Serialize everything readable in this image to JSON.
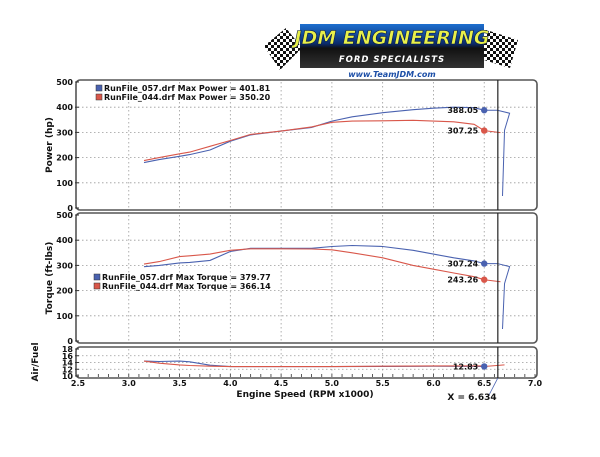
{
  "header": {
    "brand_title": "JDM ENGINEERING",
    "brand_subtitle": "FORD SPECIALISTS",
    "website": "www.TeamJDM.com"
  },
  "colors": {
    "run_057": "#4a62b0",
    "run_044": "#d9574a",
    "grid": "#9a9a9a",
    "panel_border": "#555555",
    "cursor": "#222222"
  },
  "cursor": {
    "label": "X = 6.634",
    "x": 6.634
  },
  "chart_data": [
    {
      "type": "line",
      "title": "Power",
      "xlabel": "Engine Speed (RPM x1000)",
      "ylabel": "Power (hp)",
      "xlim": [
        2.5,
        7.0
      ],
      "ylim": [
        0,
        500
      ],
      "yticks": [
        0,
        100,
        200,
        300,
        400,
        500
      ],
      "grid": true,
      "legend_position": "top-left",
      "legend": [
        {
          "label": "RunFile_057.drf Max Power = 401.81",
          "color": "#4a62b0"
        },
        {
          "label": "RunFile_044.drf Max Power = 350.20",
          "color": "#d9574a"
        }
      ],
      "x": [
        3.15,
        3.3,
        3.5,
        3.6,
        3.8,
        4.0,
        4.2,
        4.5,
        4.8,
        5.0,
        5.2,
        5.5,
        5.8,
        6.0,
        6.2,
        6.4,
        6.5
      ],
      "series": [
        {
          "name": "RunFile_057.drf",
          "values": [
            180,
            192,
            205,
            212,
            230,
            265,
            290,
            305,
            320,
            345,
            362,
            378,
            390,
            396,
            400,
            398,
            388.05
          ]
        },
        {
          "name": "RunFile_044.drf",
          "values": [
            188,
            200,
            215,
            222,
            245,
            268,
            292,
            305,
            322,
            340,
            345,
            346,
            348,
            345,
            342,
            332,
            307.25
          ]
        }
      ],
      "annotations": [
        {
          "label": "388.05",
          "x": 6.5,
          "y": 388.05,
          "series": "RunFile_057.drf"
        },
        {
          "label": "307.25",
          "x": 6.5,
          "y": 307.25,
          "series": "RunFile_044.drf"
        }
      ]
    },
    {
      "type": "line",
      "title": "Torque",
      "xlabel": "Engine Speed (RPM x1000)",
      "ylabel": "Torque (ft-lbs)",
      "xlim": [
        2.5,
        7.0
      ],
      "ylim": [
        0,
        500
      ],
      "yticks": [
        0,
        100,
        200,
        300,
        400,
        500
      ],
      "grid": true,
      "legend_position": "center-left",
      "legend": [
        {
          "label": "RunFile_057.drf Max Torque = 379.77",
          "color": "#4a62b0"
        },
        {
          "label": "RunFile_044.drf Max Torque = 366.14",
          "color": "#d9574a"
        }
      ],
      "x": [
        3.15,
        3.3,
        3.5,
        3.6,
        3.8,
        4.0,
        4.2,
        4.5,
        4.8,
        5.0,
        5.2,
        5.5,
        5.8,
        6.0,
        6.2,
        6.4,
        6.5
      ],
      "series": [
        {
          "name": "RunFile_057.drf",
          "values": [
            295,
            300,
            310,
            312,
            320,
            355,
            368,
            368,
            368,
            375,
            379,
            375,
            360,
            345,
            330,
            318,
            307.24
          ]
        },
        {
          "name": "RunFile_044.drf",
          "values": [
            305,
            315,
            335,
            338,
            345,
            360,
            366,
            366,
            365,
            362,
            350,
            330,
            300,
            285,
            270,
            255,
            243.26
          ]
        }
      ],
      "annotations": [
        {
          "label": "307.24",
          "x": 6.5,
          "y": 307.24,
          "series": "RunFile_057.drf"
        },
        {
          "label": "243.26",
          "x": 6.5,
          "y": 243.26,
          "series": "RunFile_044.drf"
        }
      ]
    },
    {
      "type": "line",
      "title": "Air/Fuel",
      "xlabel": "Engine Speed (RPM x1000)",
      "ylabel": "Air/Fuel",
      "xlim": [
        2.5,
        7.0
      ],
      "ylim": [
        10,
        18
      ],
      "yticks": [
        10,
        12,
        14,
        16,
        18
      ],
      "xticks": [
        2.5,
        3.0,
        3.5,
        4.0,
        4.5,
        5.0,
        5.5,
        6.0,
        6.5,
        7.0
      ],
      "grid": true,
      "x": [
        3.15,
        3.3,
        3.5,
        3.6,
        3.8,
        4.0,
        4.5,
        5.0,
        5.5,
        6.0,
        6.5
      ],
      "series": [
        {
          "name": "RunFile_057.drf",
          "values": [
            14.4,
            14.3,
            14.4,
            14.2,
            13.2,
            12.8,
            12.8,
            12.8,
            12.85,
            12.9,
            12.83
          ]
        },
        {
          "name": "RunFile_044.drf",
          "values": [
            14.4,
            13.8,
            13.3,
            13.1,
            12.9,
            12.8,
            12.8,
            12.8,
            12.9,
            13.0,
            13.0
          ]
        }
      ],
      "annotations": [
        {
          "label": "12.83",
          "x": 6.5,
          "y": 12.83,
          "series": "RunFile_057.drf"
        }
      ]
    }
  ]
}
